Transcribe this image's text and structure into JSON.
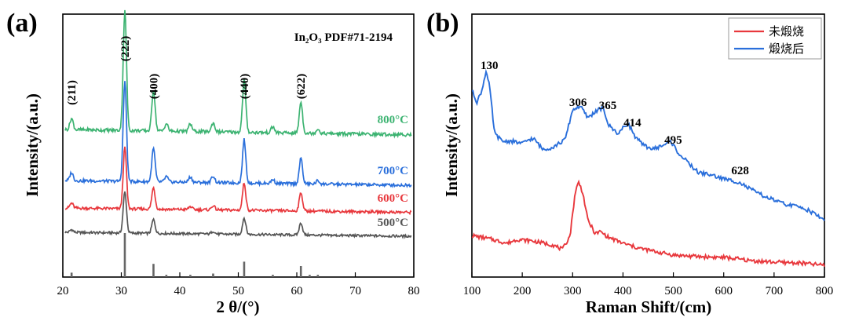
{
  "chart_data": [
    {
      "id": "a",
      "type": "line",
      "panel_label": "(a)",
      "xlabel": "2 θ/(°)",
      "ylabel": "Intensity/(a.u.)",
      "xlim": [
        20,
        80
      ],
      "xticks": [
        20,
        30,
        40,
        50,
        60,
        70,
        80
      ],
      "reference_label": "In₂O₃ PDF#71-2194",
      "peak_labels": [
        {
          "text": "(211)",
          "x": 21.5
        },
        {
          "text": "(222)",
          "x": 30.6
        },
        {
          "text": "(400)",
          "x": 35.5
        },
        {
          "text": "(440)",
          "x": 51.0
        },
        {
          "text": "(622)",
          "x": 60.7
        }
      ],
      "series": [
        {
          "name": "800°C",
          "color": "#3cb371",
          "offset": 3,
          "peaks": [
            [
              21.5,
              0.15
            ],
            [
              30.6,
              1.6
            ],
            [
              35.5,
              0.55
            ],
            [
              37.7,
              0.1
            ],
            [
              41.8,
              0.1
            ],
            [
              45.7,
              0.12
            ],
            [
              51.0,
              0.7
            ],
            [
              55.9,
              0.08
            ],
            [
              60.7,
              0.42
            ],
            [
              63.6,
              0.06
            ]
          ]
        },
        {
          "name": "700°C",
          "color": "#2a6fdb",
          "offset": 2,
          "peaks": [
            [
              21.5,
              0.12
            ],
            [
              30.6,
              1.5
            ],
            [
              35.5,
              0.5
            ],
            [
              37.7,
              0.08
            ],
            [
              41.8,
              0.08
            ],
            [
              45.7,
              0.1
            ],
            [
              51.0,
              0.65
            ],
            [
              55.9,
              0.06
            ],
            [
              60.7,
              0.38
            ],
            [
              63.6,
              0.05
            ]
          ]
        },
        {
          "name": "600°C",
          "color": "#e8383d",
          "offset": 1,
          "peaks": [
            [
              21.5,
              0.08
            ],
            [
              30.6,
              1.0
            ],
            [
              35.5,
              0.35
            ],
            [
              41.8,
              0.05
            ],
            [
              45.7,
              0.07
            ],
            [
              51.0,
              0.45
            ],
            [
              60.7,
              0.3
            ]
          ]
        },
        {
          "name": "500°C",
          "color": "#555555",
          "offset": 0,
          "peaks": [
            [
              21.5,
              0.05
            ],
            [
              30.6,
              0.75
            ],
            [
              35.5,
              0.25
            ],
            [
              45.7,
              0.05
            ],
            [
              51.0,
              0.3
            ],
            [
              60.7,
              0.22
            ]
          ]
        }
      ],
      "reference_lines": [
        {
          "x": 21.5,
          "h": 0.1
        },
        {
          "x": 30.6,
          "h": 1.0
        },
        {
          "x": 35.5,
          "h": 0.3
        },
        {
          "x": 37.7,
          "h": 0.05
        },
        {
          "x": 41.8,
          "h": 0.05
        },
        {
          "x": 45.7,
          "h": 0.08
        },
        {
          "x": 51.0,
          "h": 0.35
        },
        {
          "x": 55.9,
          "h": 0.05
        },
        {
          "x": 60.7,
          "h": 0.25
        },
        {
          "x": 62.2,
          "h": 0.05
        },
        {
          "x": 63.6,
          "h": 0.05
        }
      ]
    },
    {
      "id": "b",
      "type": "line",
      "panel_label": "(b)",
      "xlabel": "Raman Shift/(cm)",
      "ylabel": "Intensity/(a.u.)",
      "xlim": [
        100,
        800
      ],
      "xticks": [
        100,
        200,
        300,
        400,
        500,
        600,
        700,
        800
      ],
      "peak_labels": [
        {
          "text": "130",
          "x": 130
        },
        {
          "text": "306",
          "x": 306
        },
        {
          "text": "365",
          "x": 365
        },
        {
          "text": "414",
          "x": 414
        },
        {
          "text": "495",
          "x": 495
        },
        {
          "text": "628",
          "x": 628
        }
      ],
      "series": [
        {
          "name": "未煅烧",
          "color": "#e8383d",
          "points": [
            [
              100,
              40
            ],
            [
              140,
              35
            ],
            [
              170,
              30
            ],
            [
              190,
              35
            ],
            [
              220,
              33
            ],
            [
              260,
              28
            ],
            [
              280,
              22
            ],
            [
              295,
              40
            ],
            [
              305,
              95
            ],
            [
              312,
              108
            ],
            [
              320,
              95
            ],
            [
              330,
              60
            ],
            [
              345,
              42
            ],
            [
              355,
              45
            ],
            [
              370,
              38
            ],
            [
              400,
              30
            ],
            [
              430,
              24
            ],
            [
              460,
              20
            ],
            [
              500,
              15
            ],
            [
              550,
              13
            ],
            [
              600,
              12
            ],
            [
              630,
              10
            ],
            [
              650,
              8
            ],
            [
              700,
              6
            ],
            [
              750,
              5
            ],
            [
              800,
              2
            ]
          ]
        },
        {
          "name": "煅烧后",
          "color": "#2a6fdb",
          "points": [
            [
              100,
              175
            ],
            [
              110,
              160
            ],
            [
              120,
              175
            ],
            [
              128,
              200
            ],
            [
              135,
              180
            ],
            [
              145,
              120
            ],
            [
              160,
              110
            ],
            [
              180,
              110
            ],
            [
              200,
              107
            ],
            [
              215,
              113
            ],
            [
              225,
              112
            ],
            [
              240,
              100
            ],
            [
              260,
              102
            ],
            [
              285,
              112
            ],
            [
              300,
              150
            ],
            [
              315,
              155
            ],
            [
              330,
              140
            ],
            [
              350,
              150
            ],
            [
              360,
              152
            ],
            [
              372,
              130
            ],
            [
              390,
              120
            ],
            [
              410,
              133
            ],
            [
              425,
              115
            ],
            [
              440,
              105
            ],
            [
              460,
              100
            ],
            [
              480,
              105
            ],
            [
              495,
              110
            ],
            [
              510,
              95
            ],
            [
              530,
              82
            ],
            [
              550,
              70
            ],
            [
              570,
              68
            ],
            [
              600,
              62
            ],
            [
              630,
              58
            ],
            [
              650,
              50
            ],
            [
              680,
              40
            ],
            [
              720,
              30
            ],
            [
              760,
              25
            ],
            [
              800,
              10
            ]
          ]
        }
      ]
    }
  ]
}
